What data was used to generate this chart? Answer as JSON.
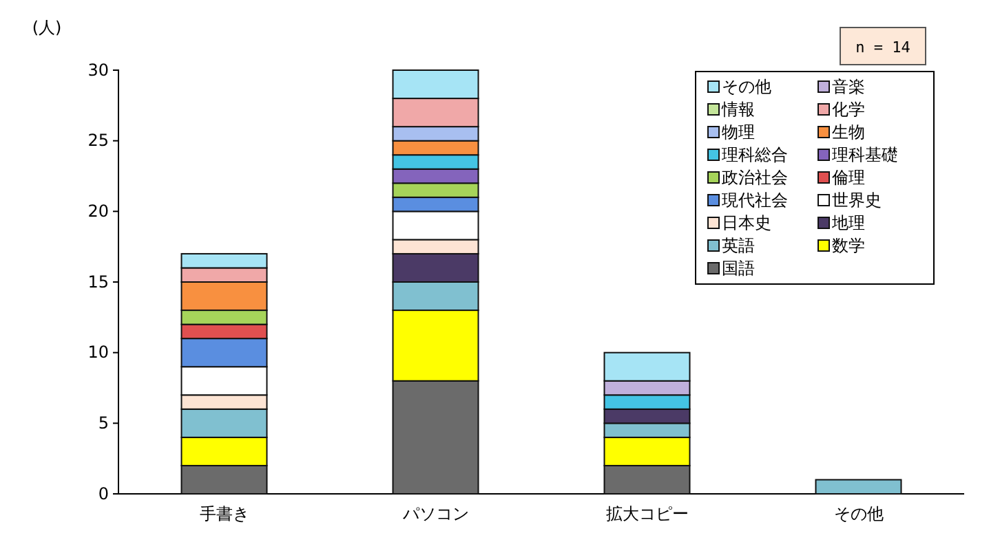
{
  "chart_data": {
    "type": "bar",
    "stacked": true,
    "ylabel": "(人)",
    "categories": [
      "手書き",
      "パソコン",
      "拡大コピー",
      "その他"
    ],
    "ylim": [
      0,
      30
    ],
    "yticks": [
      0,
      5,
      10,
      15,
      20,
      25,
      30
    ],
    "grid": false,
    "legend": "top right",
    "annotations": [
      "n = 14"
    ],
    "series": [
      {
        "name": "国語",
        "color": "#6b6b6b",
        "values": [
          2,
          8,
          2,
          0
        ]
      },
      {
        "name": "数学",
        "color": "#ffff00",
        "values": [
          2,
          5,
          2,
          0
        ]
      },
      {
        "name": "英語",
        "color": "#80c0d0",
        "values": [
          2,
          2,
          1,
          1
        ]
      },
      {
        "name": "地理",
        "color": "#4b3a66",
        "values": [
          0,
          2,
          1,
          0
        ]
      },
      {
        "name": "日本史",
        "color": "#fde4d4",
        "values": [
          1,
          1,
          0,
          0
        ]
      },
      {
        "name": "世界史",
        "color": "#ffffff",
        "values": [
          2,
          2,
          0,
          0
        ]
      },
      {
        "name": "現代社会",
        "color": "#5a8ee0",
        "values": [
          2,
          1,
          0,
          0
        ]
      },
      {
        "name": "倫理",
        "color": "#e05050",
        "values": [
          1,
          0,
          0,
          0
        ]
      },
      {
        "name": "政治社会",
        "color": "#a6d45a",
        "values": [
          1,
          1,
          0,
          0
        ]
      },
      {
        "name": "理科基礎",
        "color": "#8464bc",
        "values": [
          0,
          1,
          0,
          0
        ]
      },
      {
        "name": "理科総合",
        "color": "#44c4e4",
        "values": [
          0,
          1,
          1,
          0
        ]
      },
      {
        "name": "生物",
        "color": "#f89040",
        "values": [
          2,
          1,
          0,
          0
        ]
      },
      {
        "name": "物理",
        "color": "#a8bff0",
        "values": [
          0,
          1,
          0,
          0
        ]
      },
      {
        "name": "化学",
        "color": "#f0a8a8",
        "values": [
          1,
          2,
          0,
          0
        ]
      },
      {
        "name": "情報",
        "color": "#c4e59a",
        "values": [
          0,
          0,
          0,
          0
        ]
      },
      {
        "name": "音楽",
        "color": "#c0b0dc",
        "values": [
          0,
          0,
          1,
          0
        ]
      },
      {
        "name": "その他",
        "color": "#a6e4f5",
        "values": [
          1,
          2,
          2,
          0
        ]
      }
    ]
  }
}
